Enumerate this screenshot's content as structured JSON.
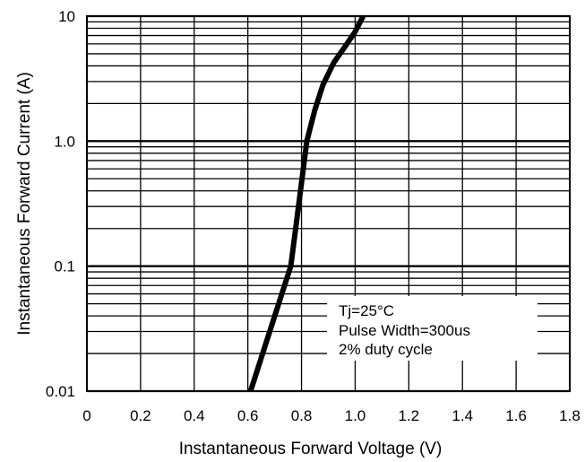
{
  "chart_data": {
    "type": "line",
    "xlabel": "Instantaneous Forward Voltage (V)",
    "ylabel": "Instantaneous Forward Current (A)",
    "xlim": [
      0,
      1.8
    ],
    "ylim": [
      0.01,
      10
    ],
    "y_scale": "log",
    "grid": true,
    "x_ticks": [
      {
        "value": 0,
        "label": "0"
      },
      {
        "value": 0.2,
        "label": "0.2"
      },
      {
        "value": 0.4,
        "label": "0.4"
      },
      {
        "value": 0.6,
        "label": "0.6"
      },
      {
        "value": 0.8,
        "label": "0.8"
      },
      {
        "value": 1.0,
        "label": "1.0"
      },
      {
        "value": 1.2,
        "label": "1.2"
      },
      {
        "value": 1.4,
        "label": "1.4"
      },
      {
        "value": 1.6,
        "label": "1.6"
      },
      {
        "value": 1.8,
        "label": "1.8"
      }
    ],
    "y_ticks": [
      {
        "value": 0.01,
        "label": "0.01"
      },
      {
        "value": 0.1,
        "label": "0.1"
      },
      {
        "value": 1,
        "label": "1.0"
      },
      {
        "value": 10,
        "label": "10"
      }
    ],
    "series": [
      {
        "x": [
          0.61,
          0.64,
          0.67,
          0.7,
          0.73,
          0.76,
          0.79,
          0.82,
          0.85,
          0.88,
          0.92,
          0.96,
          1.0,
          1.03
        ],
        "y": [
          0.01,
          0.0158,
          0.0251,
          0.0398,
          0.0631,
          0.1,
          0.316,
          1.0,
          1.78,
          2.82,
          4.24,
          5.62,
          7.5,
          10
        ]
      }
    ],
    "annotations": [
      "Tj=25°C",
      "Pulse Width=300us",
      "2% duty cycle"
    ]
  }
}
